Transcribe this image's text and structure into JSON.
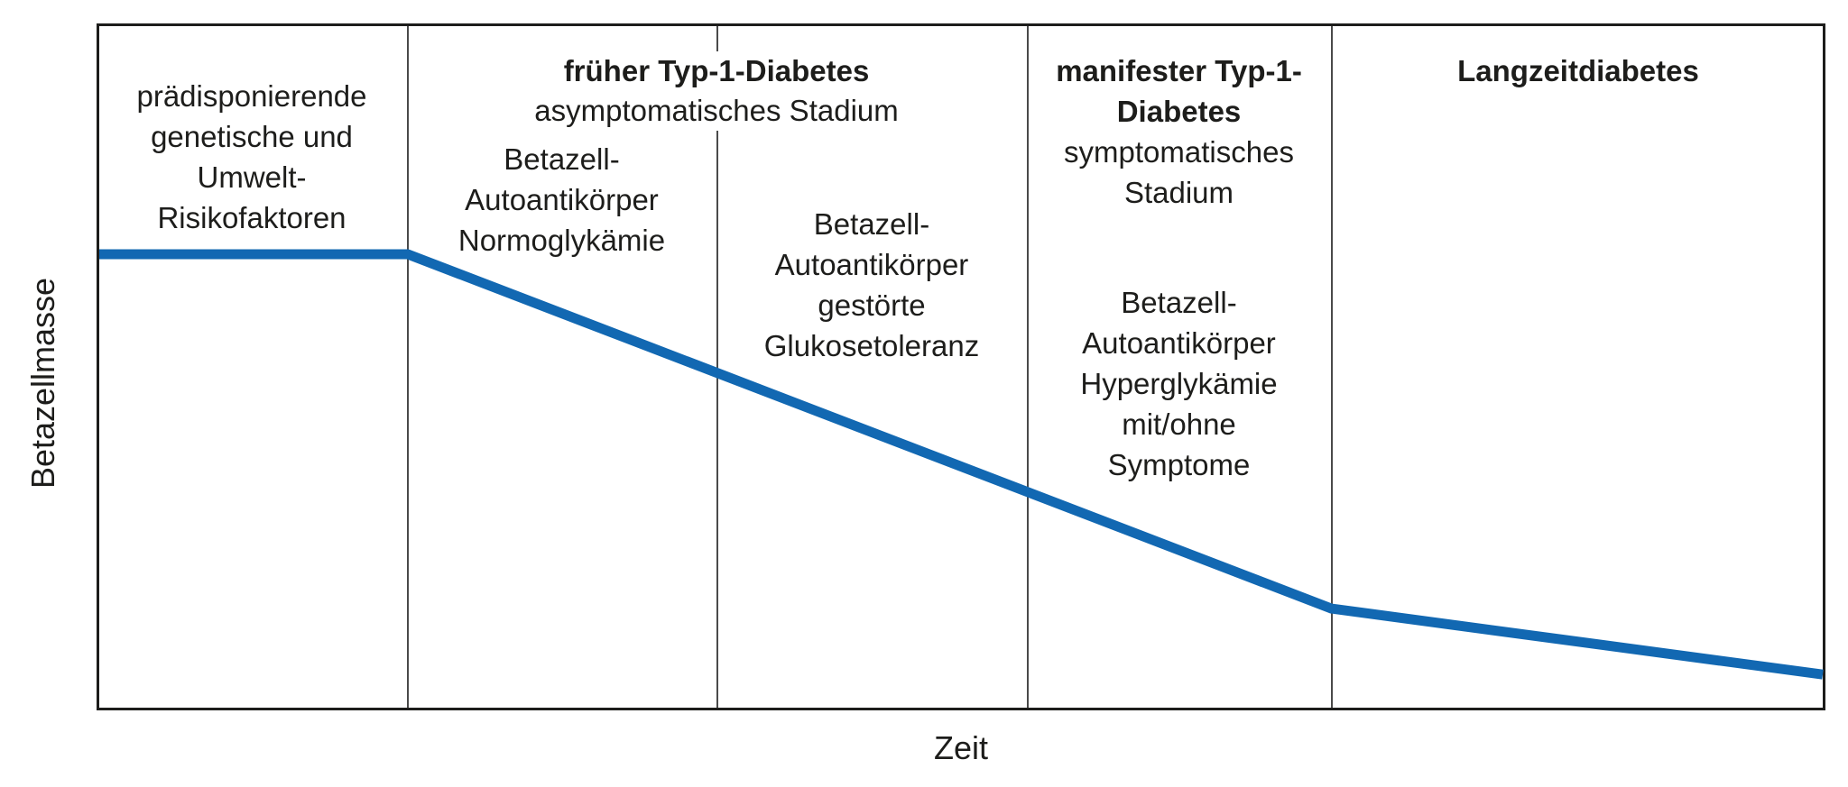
{
  "figure": {
    "y_axis_label": "Betazellmasse",
    "x_axis_label": "Zeit"
  },
  "colors": {
    "curve_blue": "#1268b2",
    "frame_black": "#1d1d1b",
    "divider_gray": "#4a4a4a",
    "text_black": "#1d1d1b"
  },
  "sections": {
    "predisposition": {
      "lines": [
        "prädisponierende",
        "genetische und",
        "Umwelt-",
        "Risikofaktoren"
      ]
    },
    "early_t1d": {
      "title": "früher Typ-1-Diabetes",
      "subtitle": "asymptomatisches Stadium",
      "stage_normoglycemia": {
        "lines": [
          "Betazell-",
          "Autoantikörper",
          "Normoglykämie"
        ]
      },
      "stage_dysglycemia": {
        "lines": [
          "Betazell-",
          "Autoantikörper",
          "gestörte",
          "Glukosetoleranz"
        ]
      }
    },
    "manifest_t1d": {
      "title_lines": [
        "manifester Typ-1-",
        "Diabetes"
      ],
      "subtitle_lines": [
        "symptomatisches",
        "Stadium"
      ],
      "stage_hyperglycemia": {
        "lines": [
          "Betazell-",
          "Autoantikörper",
          "Hyperglykämie",
          "mit/ohne",
          "Symptome"
        ]
      }
    },
    "longterm": {
      "title": "Langzeitdiabetes"
    }
  },
  "chart_data": {
    "type": "line",
    "title": "",
    "xlabel": "Zeit",
    "ylabel": "Betazellmasse",
    "x_unit": "relative time, qualitative (0-100)",
    "y_unit": "relative beta cell mass, qualitative (0-100)",
    "grid": false,
    "legend": false,
    "series": [
      {
        "name": "Betazellmasse",
        "color": "#1268b2",
        "points": [
          [
            0,
            100
          ],
          [
            17.9,
            100
          ],
          [
            71.5,
            22
          ],
          [
            100,
            7.5
          ]
        ]
      }
    ],
    "stage_boundaries_x": [
      17.9,
      35.8,
      53.8,
      71.5
    ]
  }
}
